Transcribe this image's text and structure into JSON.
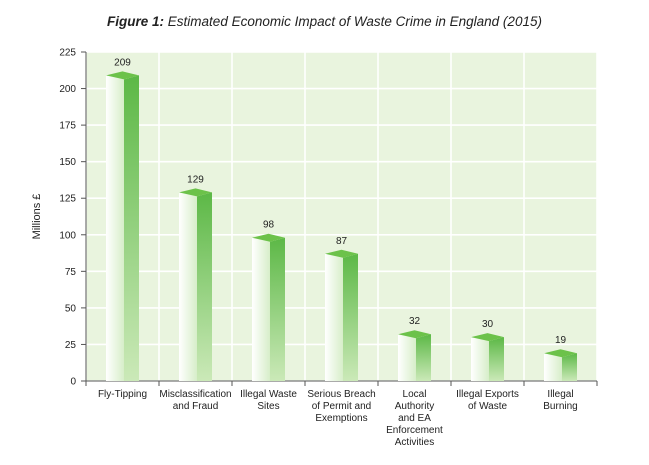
{
  "figure": {
    "label": "Figure 1:",
    "title": "Estimated Economic Impact of Waste Crime in England (2015)"
  },
  "chart_data": {
    "type": "bar",
    "ylabel": "Millions £",
    "xlabel": "",
    "ylim": [
      0,
      225
    ],
    "yticks": [
      0,
      25,
      50,
      75,
      100,
      125,
      150,
      175,
      200,
      225
    ],
    "grid": true,
    "categories": [
      [
        "Fly-Tipping"
      ],
      [
        "Misclassification",
        "and Fraud"
      ],
      [
        "Illegal Waste",
        "Sites"
      ],
      [
        "Serious Breach",
        "of Permit and",
        "Exemptions"
      ],
      [
        "Local",
        "Authority",
        "and EA",
        "Enforcement",
        "Activities"
      ],
      [
        "Illegal Exports",
        "of Waste"
      ],
      [
        "Illegal",
        "Burning"
      ]
    ],
    "values": [
      209,
      129,
      98,
      87,
      32,
      30,
      19
    ],
    "colors": {
      "bar_dark": "#5cb846",
      "bar_light": "#ffffff",
      "bar_top": "#6cc24a",
      "panel_bg": "#e9f4de",
      "grid": "#ffffff",
      "axis": "#555555"
    }
  }
}
